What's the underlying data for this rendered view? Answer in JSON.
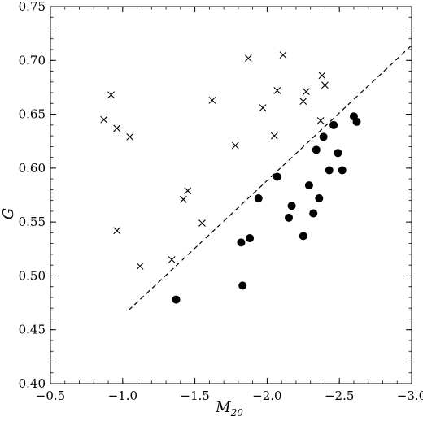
{
  "chart_data": {
    "type": "scatter",
    "xlabel": "M",
    "xlabel_sub": "20",
    "ylabel": "G",
    "xlim": [
      -0.5,
      -3.0
    ],
    "ylim": [
      0.4,
      0.75
    ],
    "x_axis_inverted": true,
    "xticks": [
      "−0.5",
      "−1.0",
      "−1.5",
      "−2.0",
      "−2.5",
      "−3.0"
    ],
    "xtick_values": [
      -0.5,
      -1.0,
      -1.5,
      -2.0,
      -2.5,
      -3.0
    ],
    "yticks": [
      "0.40",
      "0.45",
      "0.50",
      "0.55",
      "0.60",
      "0.65",
      "0.70",
      "0.75"
    ],
    "ytick_values": [
      0.4,
      0.45,
      0.5,
      0.55,
      0.6,
      0.65,
      0.7,
      0.75
    ],
    "grid": false,
    "series": [
      {
        "marker": "x",
        "color": "#000000",
        "points": [
          [
            -0.87,
            0.645
          ],
          [
            -0.92,
            0.668
          ],
          [
            -0.96,
            0.637
          ],
          [
            -1.05,
            0.629
          ],
          [
            -0.96,
            0.542
          ],
          [
            -1.12,
            0.509
          ],
          [
            -1.34,
            0.515
          ],
          [
            -1.42,
            0.571
          ],
          [
            -1.45,
            0.579
          ],
          [
            -1.55,
            0.549
          ],
          [
            -1.62,
            0.663
          ],
          [
            -1.78,
            0.621
          ],
          [
            -1.87,
            0.702
          ],
          [
            -1.97,
            0.656
          ],
          [
            -2.05,
            0.63
          ],
          [
            -2.07,
            0.672
          ],
          [
            -2.11,
            0.705
          ],
          [
            -2.25,
            0.662
          ],
          [
            -2.27,
            0.671
          ],
          [
            -2.37,
            0.644
          ],
          [
            -2.38,
            0.686
          ],
          [
            -2.4,
            0.677
          ]
        ]
      },
      {
        "marker": "circle",
        "color": "#000000",
        "points": [
          [
            -1.37,
            0.478
          ],
          [
            -1.83,
            0.491
          ],
          [
            -1.82,
            0.531
          ],
          [
            -1.88,
            0.535
          ],
          [
            -1.94,
            0.572
          ],
          [
            -2.07,
            0.592
          ],
          [
            -2.15,
            0.554
          ],
          [
            -2.17,
            0.565
          ],
          [
            -2.25,
            0.537
          ],
          [
            -2.29,
            0.584
          ],
          [
            -2.32,
            0.558
          ],
          [
            -2.34,
            0.617
          ],
          [
            -2.36,
            0.572
          ],
          [
            -2.39,
            0.629
          ],
          [
            -2.43,
            0.598
          ],
          [
            -2.46,
            0.64
          ],
          [
            -2.49,
            0.614
          ],
          [
            -2.52,
            0.598
          ],
          [
            -2.6,
            0.648
          ],
          [
            -2.62,
            0.643
          ]
        ]
      }
    ],
    "dividing_line": {
      "style": "dashed",
      "color": "#000000",
      "from": [
        -1.04,
        0.468
      ],
      "to": [
        -3.0,
        0.714
      ]
    }
  }
}
